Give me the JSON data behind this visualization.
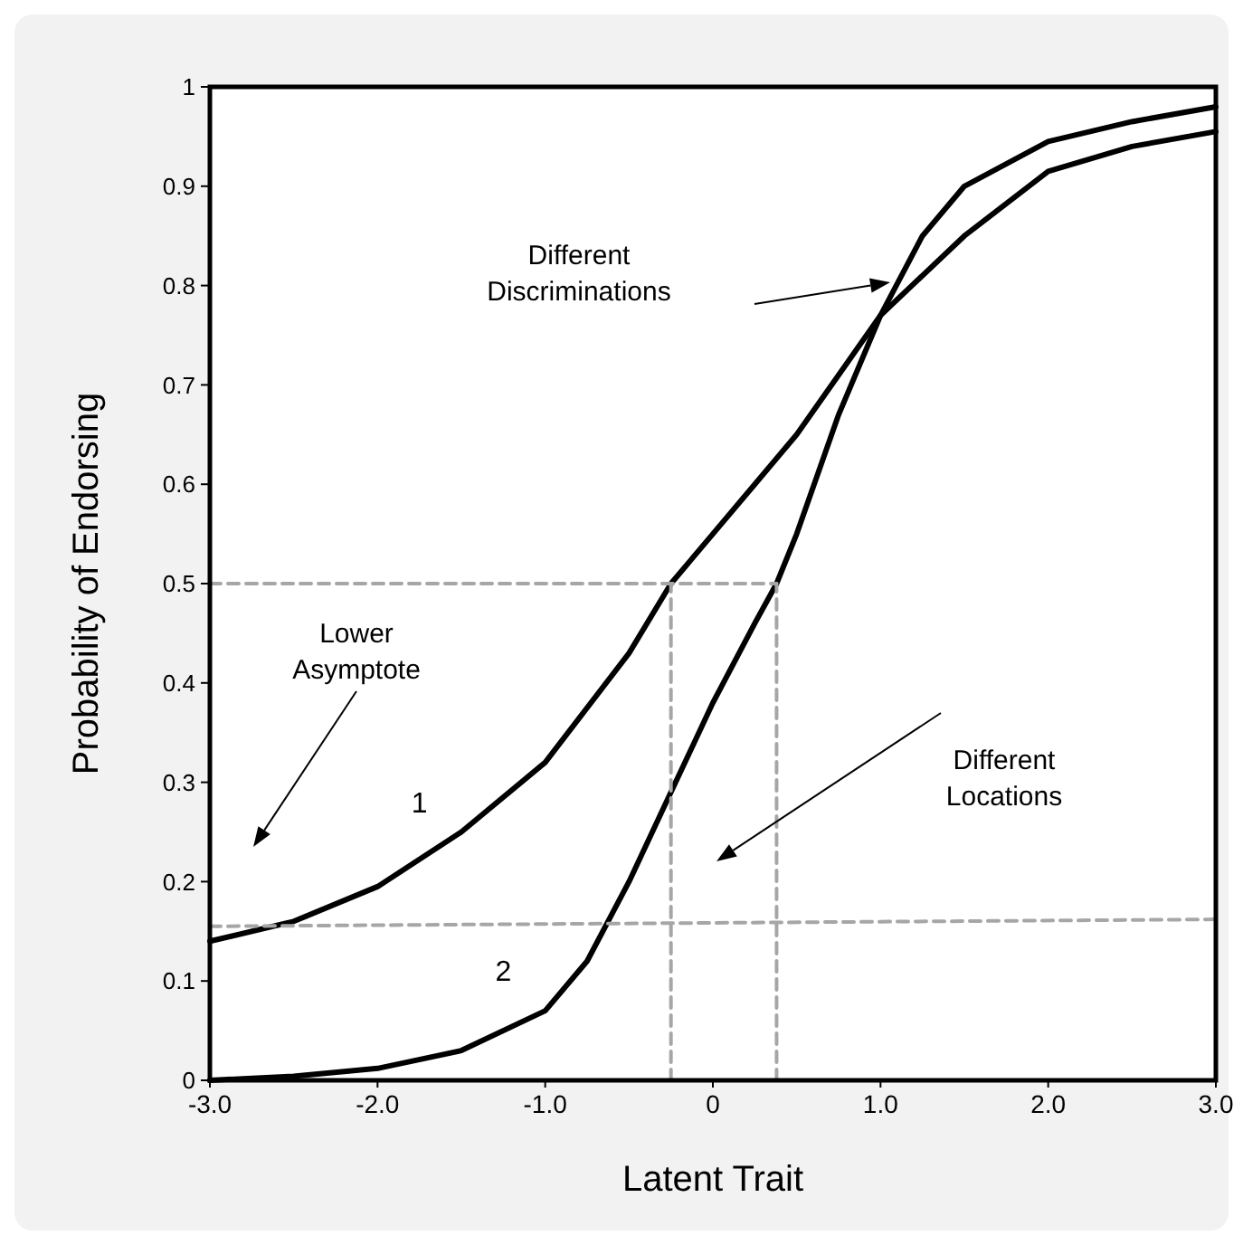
{
  "chart_data": {
    "type": "line",
    "xlabel": "Latent Trait",
    "ylabel": "Probability of Endorsing",
    "xlim": [
      -3,
      3
    ],
    "ylim": [
      0,
      1
    ],
    "xticks": [
      {
        "value": -3,
        "label": "-3.0"
      },
      {
        "value": -2,
        "label": "-2.0"
      },
      {
        "value": -1,
        "label": "-1.0"
      },
      0,
      {
        "value": 1,
        "label": "1.0"
      },
      {
        "value": 2,
        "label": "2.0"
      },
      {
        "value": 3,
        "label": "3.0"
      }
    ],
    "yticks": [
      0,
      0.1,
      0.2,
      0.3,
      0.4,
      0.5,
      0.6,
      0.7,
      0.8,
      0.9,
      1
    ],
    "grid": false,
    "marker": "none",
    "line_style": "solid",
    "series": [
      {
        "name": "1",
        "color": "#000000",
        "x": [
          -3,
          -2.5,
          -2,
          -1.5,
          -1,
          -0.5,
          -0.25,
          0,
          0.25,
          0.5,
          0.75,
          1,
          1.5,
          2,
          2.5,
          3
        ],
        "values": [
          0.14,
          0.16,
          0.195,
          0.25,
          0.32,
          0.43,
          0.5,
          0.55,
          0.6,
          0.65,
          0.71,
          0.77,
          0.85,
          0.915,
          0.94,
          0.955
        ]
      },
      {
        "name": "2",
        "color": "#000000",
        "x": [
          -3,
          -2.5,
          -2,
          -1.5,
          -1,
          -0.75,
          -0.5,
          -0.25,
          0,
          0.25,
          0.38,
          0.5,
          0.75,
          1,
          1.25,
          1.5,
          2,
          2.5,
          3
        ],
        "values": [
          0,
          0.004,
          0.012,
          0.03,
          0.07,
          0.12,
          0.2,
          0.29,
          0.38,
          0.46,
          0.5,
          0.55,
          0.67,
          0.77,
          0.85,
          0.9,
          0.945,
          0.965,
          0.98
        ]
      },
      {
        "color": "#a6a6a6",
        "line_style": "dashed",
        "x": [
          -3,
          0.38
        ],
        "values": [
          0.5,
          0.5
        ]
      },
      {
        "color": "#a6a6a6",
        "line_style": "dashed",
        "x": [
          -0.25,
          -0.25
        ],
        "values": [
          0,
          0.5
        ]
      },
      {
        "color": "#a6a6a6",
        "line_style": "dashed",
        "x": [
          0.38,
          0.38
        ],
        "values": [
          0,
          0.5
        ]
      },
      {
        "color": "#a6a6a6",
        "line_style": "dashed",
        "x": [
          -3,
          3
        ],
        "values": [
          0.155,
          0.162
        ]
      }
    ],
    "annotations": [
      "Different\nDiscriminations",
      "Lower\nAsymptote",
      "Different\nLocations"
    ]
  }
}
